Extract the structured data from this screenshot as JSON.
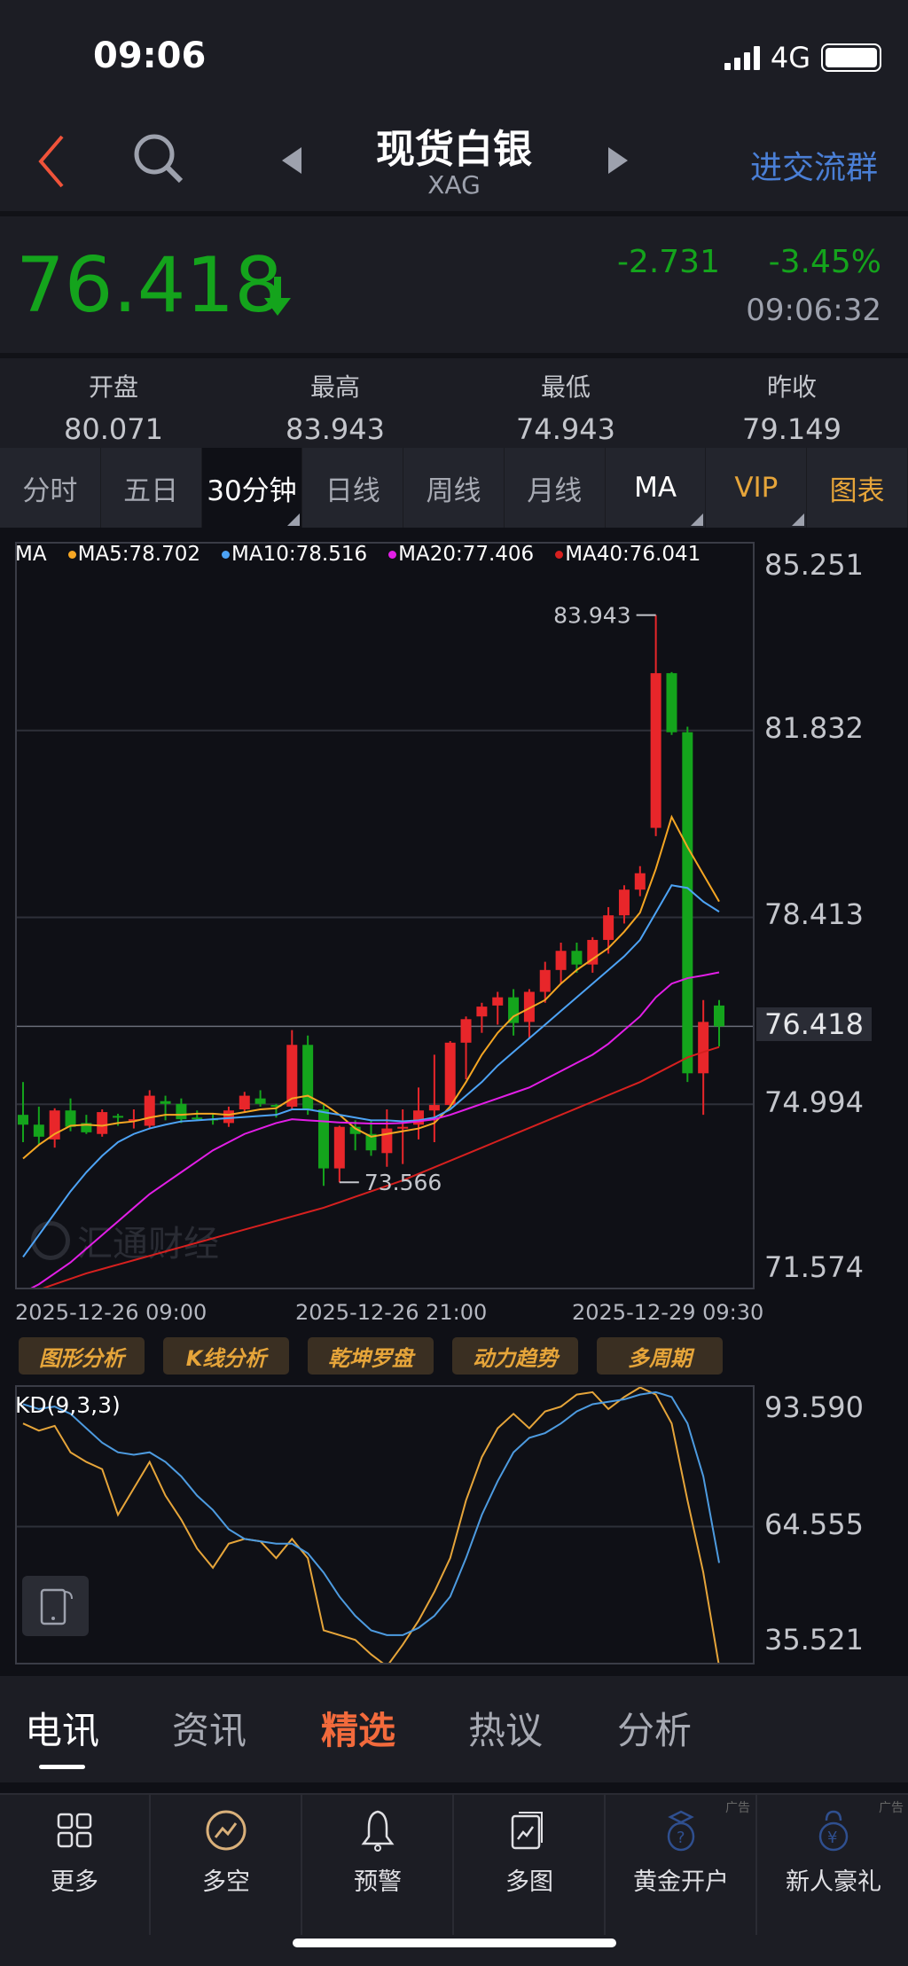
{
  "status_bar": {
    "time": "09:06",
    "network": "4G"
  },
  "nav": {
    "title": "现货白银",
    "symbol": "XAG",
    "group_link": "进交流群"
  },
  "quote": {
    "price": "76.418",
    "change": "-2.731",
    "change_pct": "-3.45%",
    "time": "09:06:32",
    "color_down": "#14a41c",
    "color_up": "#e8262a"
  },
  "ohlc": [
    {
      "label": "开盘",
      "value": "80.071"
    },
    {
      "label": "最高",
      "value": "83.943"
    },
    {
      "label": "最低",
      "value": "74.943"
    },
    {
      "label": "昨收",
      "value": "79.149"
    }
  ],
  "period_tabs": [
    {
      "label": "分时"
    },
    {
      "label": "五日"
    },
    {
      "label": "30分钟",
      "selected": true
    },
    {
      "label": "日线"
    },
    {
      "label": "周线"
    },
    {
      "label": "月线"
    },
    {
      "label": "MA"
    },
    {
      "label": "VIP"
    },
    {
      "label": "图表"
    }
  ],
  "legend": {
    "title": "MA",
    "items": [
      {
        "label": "MA5:78.702",
        "color": "#f5a623"
      },
      {
        "label": "MA10:78.516",
        "color": "#4da3f5"
      },
      {
        "label": "MA20:77.406",
        "color": "#e21ee6"
      },
      {
        "label": "MA40:76.041",
        "color": "#d6201f"
      }
    ]
  },
  "watermark": "汇通财经",
  "chart_data": [
    {
      "type": "candlestick",
      "ylim": [
        71.574,
        85.251
      ],
      "y_ticks": [
        "85.251",
        "81.832",
        "78.413",
        "74.994",
        "71.574"
      ],
      "current_price_label": "76.418",
      "x_tick_labels": [
        "2025-12-26 09:00",
        "2025-12-26 21:00",
        "2025-12-29 09:30"
      ],
      "max_label": "83.943",
      "min_label": "73.566",
      "grid": true,
      "ohlc": [
        [
          74.8,
          75.4,
          74.3,
          74.62
        ],
        [
          74.62,
          74.95,
          74.25,
          74.4
        ],
        [
          74.35,
          74.92,
          74.2,
          74.88
        ],
        [
          74.88,
          75.1,
          74.5,
          74.58
        ],
        [
          74.65,
          74.8,
          74.45,
          74.48
        ],
        [
          74.45,
          74.9,
          74.4,
          74.85
        ],
        [
          74.78,
          74.82,
          74.6,
          74.75
        ],
        [
          74.7,
          74.9,
          74.55,
          74.72
        ],
        [
          74.6,
          75.25,
          74.55,
          75.15
        ],
        [
          75.05,
          75.15,
          74.7,
          75.0
        ],
        [
          75.0,
          75.1,
          74.65,
          74.72
        ],
        [
          74.75,
          74.88,
          74.7,
          74.74
        ],
        [
          74.73,
          74.82,
          74.62,
          74.72
        ],
        [
          74.65,
          74.95,
          74.58,
          74.88
        ],
        [
          74.9,
          75.22,
          74.85,
          75.15
        ],
        [
          75.1,
          75.25,
          74.95,
          75.0
        ],
        [
          74.98,
          75.0,
          74.75,
          74.95
        ],
        [
          74.95,
          76.35,
          74.9,
          76.08
        ],
        [
          76.08,
          76.25,
          74.8,
          74.9
        ],
        [
          74.9,
          75.0,
          73.5,
          73.82
        ],
        [
          73.82,
          74.6,
          73.566,
          74.58
        ],
        [
          74.58,
          74.7,
          74.15,
          74.45
        ],
        [
          74.45,
          74.7,
          74.05,
          74.15
        ],
        [
          74.1,
          74.9,
          73.85,
          74.55
        ],
        [
          74.55,
          74.9,
          73.9,
          74.58
        ],
        [
          74.62,
          75.3,
          74.35,
          74.88
        ],
        [
          74.88,
          75.9,
          74.3,
          74.98
        ],
        [
          74.98,
          76.15,
          74.95,
          76.12
        ],
        [
          76.12,
          76.6,
          75.45,
          76.55
        ],
        [
          76.6,
          76.85,
          76.3,
          76.78
        ],
        [
          76.8,
          77.05,
          76.45,
          76.95
        ],
        [
          76.95,
          77.1,
          76.25,
          76.48
        ],
        [
          76.5,
          77.1,
          76.2,
          77.05
        ],
        [
          77.05,
          77.6,
          76.85,
          77.45
        ],
        [
          77.45,
          77.95,
          77.2,
          77.8
        ],
        [
          77.8,
          77.95,
          77.4,
          77.55
        ],
        [
          77.55,
          78.05,
          77.4,
          78.0
        ],
        [
          78.0,
          78.6,
          77.75,
          78.45
        ],
        [
          78.45,
          79.0,
          78.3,
          78.92
        ],
        [
          78.92,
          79.35,
          78.8,
          79.22
        ],
        [
          80.05,
          83.943,
          79.9,
          82.88
        ],
        [
          82.88,
          82.9,
          81.75,
          81.8
        ],
        [
          81.8,
          81.9,
          75.4,
          75.56
        ],
        [
          75.56,
          76.9,
          74.8,
          76.5
        ],
        [
          76.8,
          76.9,
          76.05,
          76.418
        ]
      ],
      "series": [
        {
          "name": "MA5",
          "color": "#f5a623",
          "values": [
            74.0,
            74.25,
            74.45,
            74.6,
            74.62,
            74.6,
            74.65,
            74.68,
            74.75,
            74.8,
            74.8,
            74.82,
            74.82,
            74.8,
            74.85,
            74.9,
            74.92,
            75.1,
            75.15,
            75.0,
            74.8,
            74.55,
            74.4,
            74.45,
            74.5,
            74.55,
            74.65,
            74.95,
            75.4,
            75.9,
            76.3,
            76.6,
            76.75,
            76.9,
            77.2,
            77.45,
            77.65,
            77.85,
            78.15,
            78.5,
            79.3,
            80.25,
            79.7,
            79.2,
            78.702
          ]
        },
        {
          "name": "MA10",
          "color": "#4da3f5",
          "values": [
            72.2,
            72.6,
            73.0,
            73.4,
            73.75,
            74.05,
            74.3,
            74.45,
            74.55,
            74.62,
            74.68,
            74.7,
            74.72,
            74.74,
            74.76,
            74.78,
            74.8,
            74.9,
            74.9,
            74.85,
            74.8,
            74.75,
            74.7,
            74.7,
            74.68,
            74.7,
            74.75,
            74.9,
            75.15,
            75.4,
            75.7,
            75.95,
            76.2,
            76.45,
            76.7,
            76.95,
            77.2,
            77.45,
            77.7,
            78.0,
            78.5,
            79.0,
            78.95,
            78.7,
            78.516
          ]
        },
        {
          "name": "MA20",
          "color": "#e21ee6",
          "values": [
            71.55,
            71.7,
            71.9,
            72.1,
            72.35,
            72.6,
            72.85,
            73.1,
            73.35,
            73.55,
            73.75,
            73.95,
            74.15,
            74.3,
            74.45,
            74.55,
            74.65,
            74.72,
            74.7,
            74.68,
            74.66,
            74.65,
            74.64,
            74.64,
            74.65,
            74.68,
            74.72,
            74.8,
            74.9,
            75.0,
            75.1,
            75.2,
            75.3,
            75.45,
            75.6,
            75.75,
            75.9,
            76.1,
            76.35,
            76.6,
            76.95,
            77.2,
            77.3,
            77.35,
            77.406
          ]
        },
        {
          "name": "MA40",
          "color": "#d6201f",
          "values": [
            71.5,
            71.6,
            71.7,
            71.8,
            71.9,
            71.98,
            72.06,
            72.14,
            72.22,
            72.3,
            72.38,
            72.46,
            72.54,
            72.62,
            72.7,
            72.78,
            72.86,
            72.94,
            73.02,
            73.1,
            73.2,
            73.3,
            73.4,
            73.5,
            73.6,
            73.72,
            73.84,
            73.96,
            74.08,
            74.2,
            74.32,
            74.44,
            74.56,
            74.68,
            74.8,
            74.92,
            75.04,
            75.16,
            75.28,
            75.4,
            75.55,
            75.7,
            75.85,
            75.95,
            76.041
          ]
        }
      ]
    },
    {
      "type": "line",
      "title": "KD(9,3,3)",
      "ylim": [
        35.521,
        93.59
      ],
      "y_ticks": [
        "93.590",
        "64.555",
        "35.521"
      ],
      "grid": true,
      "series": [
        {
          "name": "K",
          "color": "#e6a53a",
          "values": [
            86,
            84.5,
            85.5,
            80,
            78,
            76.5,
            67,
            72.5,
            78,
            71,
            66,
            60,
            56,
            61,
            62,
            61.5,
            58,
            62,
            58,
            43,
            42,
            41,
            38,
            35.5,
            40,
            45,
            51,
            58,
            70,
            79,
            85,
            88,
            85,
            88.5,
            89.5,
            92,
            92.5,
            89,
            91.5,
            93.5,
            92,
            86,
            70,
            55,
            35.5
          ]
        },
        {
          "name": "D",
          "color": "#4d9be0",
          "values": [
            90,
            89,
            89.5,
            88,
            85,
            82,
            80,
            79.5,
            80,
            78,
            75,
            71,
            68,
            64,
            62,
            61.5,
            61,
            61,
            59,
            55,
            50,
            46,
            43,
            42,
            42,
            43.5,
            46,
            50,
            58,
            67,
            74,
            80,
            83,
            84,
            86,
            88.5,
            90,
            90.5,
            91,
            92,
            92.5,
            91.5,
            86,
            75,
            57
          ]
        }
      ]
    }
  ],
  "analysis_buttons": [
    "图形分析",
    "K线分析",
    "乾坤罗盘",
    "动力趋势",
    "多周期"
  ],
  "news_tabs": [
    {
      "label": "电讯",
      "active": true
    },
    {
      "label": "资讯"
    },
    {
      "label": "精选",
      "highlight": "#f26a3c"
    },
    {
      "label": "热议"
    },
    {
      "label": "分析"
    }
  ],
  "toolbar": [
    {
      "label": "更多",
      "icon": "grid-icon"
    },
    {
      "label": "多空",
      "icon": "trend-circle-icon"
    },
    {
      "label": "预警",
      "icon": "bell-icon"
    },
    {
      "label": "多图",
      "icon": "multi-chart-icon"
    },
    {
      "label": "黄金开户",
      "icon": "money-bag-question-icon",
      "ad": "广告"
    },
    {
      "label": "新人豪礼",
      "icon": "money-bag-yen-icon",
      "ad": "广告"
    }
  ]
}
